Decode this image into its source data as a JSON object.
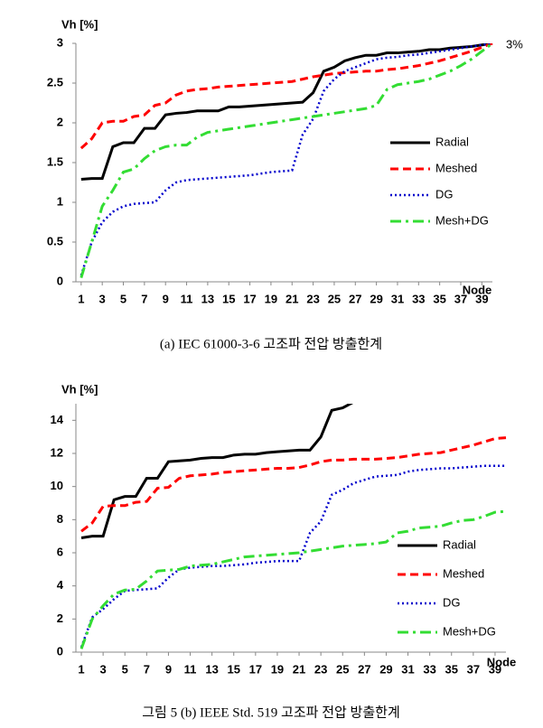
{
  "chart_data": [
    {
      "type": "line",
      "y_label": "Vh [%]",
      "x_label": "Node",
      "annotation": "3%",
      "caption": "(a) IEC 61000-3-6 고조파 전압 방출한계",
      "x": [
        1,
        2,
        3,
        4,
        5,
        6,
        7,
        8,
        9,
        10,
        11,
        12,
        13,
        14,
        15,
        16,
        17,
        18,
        19,
        20,
        21,
        22,
        23,
        24,
        25,
        26,
        27,
        28,
        29,
        30,
        31,
        32,
        33,
        34,
        35,
        36,
        37,
        38,
        39,
        40
      ],
      "xlim": [
        0.5,
        40
      ],
      "xticks": [
        1,
        3,
        5,
        7,
        9,
        11,
        13,
        15,
        17,
        19,
        21,
        23,
        25,
        27,
        29,
        31,
        33,
        35,
        37,
        39
      ],
      "ylim": [
        0,
        3
      ],
      "yticks": [
        0,
        0.5,
        1,
        1.5,
        2,
        2.5,
        3
      ],
      "grid": false,
      "legend": "right",
      "series": [
        {
          "name": "Radial",
          "color": "#000000",
          "style": "solid",
          "values": [
            1.29,
            1.3,
            1.3,
            1.7,
            1.75,
            1.75,
            1.93,
            1.93,
            2.1,
            2.12,
            2.13,
            2.15,
            2.15,
            2.15,
            2.2,
            2.2,
            2.21,
            2.22,
            2.23,
            2.24,
            2.25,
            2.26,
            2.38,
            2.65,
            2.7,
            2.78,
            2.82,
            2.85,
            2.85,
            2.88,
            2.88,
            2.89,
            2.9,
            2.92,
            2.92,
            2.94,
            2.95,
            2.96,
            2.98,
            3.0
          ]
        },
        {
          "name": "Meshed",
          "color": "#ff0000",
          "style": "dashed",
          "values": [
            1.68,
            1.8,
            2.0,
            2.02,
            2.02,
            2.08,
            2.1,
            2.22,
            2.25,
            2.35,
            2.4,
            2.42,
            2.43,
            2.45,
            2.46,
            2.47,
            2.48,
            2.49,
            2.5,
            2.51,
            2.52,
            2.55,
            2.58,
            2.6,
            2.62,
            2.63,
            2.64,
            2.65,
            2.65,
            2.67,
            2.68,
            2.7,
            2.72,
            2.75,
            2.78,
            2.82,
            2.86,
            2.9,
            2.95,
            3.0
          ]
        },
        {
          "name": "DG",
          "color": "#0000cc",
          "style": "dotted",
          "values": [
            0.08,
            0.5,
            0.75,
            0.88,
            0.95,
            0.98,
            0.99,
            1.0,
            1.15,
            1.25,
            1.28,
            1.29,
            1.3,
            1.31,
            1.32,
            1.33,
            1.34,
            1.36,
            1.38,
            1.39,
            1.4,
            1.85,
            2.05,
            2.4,
            2.55,
            2.65,
            2.7,
            2.75,
            2.8,
            2.82,
            2.83,
            2.85,
            2.86,
            2.88,
            2.9,
            2.92,
            2.94,
            2.96,
            2.98,
            3.0
          ]
        },
        {
          "name": "Mesh+DG",
          "color": "#33dd33",
          "style": "dashdot",
          "values": [
            0.05,
            0.5,
            0.95,
            1.15,
            1.38,
            1.42,
            1.55,
            1.65,
            1.7,
            1.72,
            1.72,
            1.82,
            1.88,
            1.9,
            1.92,
            1.94,
            1.96,
            1.98,
            2.0,
            2.02,
            2.04,
            2.06,
            2.08,
            2.1,
            2.12,
            2.14,
            2.16,
            2.18,
            2.22,
            2.42,
            2.48,
            2.5,
            2.52,
            2.55,
            2.6,
            2.65,
            2.72,
            2.8,
            2.9,
            3.0
          ]
        }
      ]
    },
    {
      "type": "line",
      "y_label": "Vh [%]",
      "x_label": "Node",
      "caption": "그림 5 (b) IEEE Std. 519 고조파 전압 방출한계",
      "x": [
        1,
        2,
        3,
        4,
        5,
        6,
        7,
        8,
        9,
        10,
        11,
        12,
        13,
        14,
        15,
        16,
        17,
        18,
        19,
        20,
        21,
        22,
        23,
        24,
        25,
        26,
        27,
        28,
        29,
        30,
        31,
        32,
        33,
        34,
        35,
        36,
        37,
        38,
        39,
        40
      ],
      "xlim": [
        0.5,
        40
      ],
      "xticks": [
        1,
        3,
        5,
        7,
        9,
        11,
        13,
        15,
        17,
        19,
        21,
        23,
        25,
        27,
        29,
        31,
        33,
        35,
        37,
        39
      ],
      "ylim": [
        0,
        15
      ],
      "yticks": [
        0,
        2,
        4,
        6,
        8,
        10,
        12,
        14
      ],
      "grid": false,
      "legend": "right",
      "series": [
        {
          "name": "Radial",
          "color": "#000000",
          "style": "solid",
          "values": [
            6.9,
            7.0,
            7.0,
            9.2,
            9.4,
            9.4,
            10.5,
            10.5,
            11.5,
            11.55,
            11.6,
            11.7,
            11.75,
            11.75,
            11.9,
            11.95,
            11.95,
            12.05,
            12.1,
            12.15,
            12.2,
            12.2,
            13.0,
            14.6,
            14.75,
            15.1,
            null,
            null,
            null,
            null,
            null,
            null,
            null,
            null,
            null,
            null,
            null,
            null,
            null,
            null
          ]
        },
        {
          "name": "Meshed",
          "color": "#ff0000",
          "style": "dashed",
          "values": [
            7.3,
            7.8,
            8.8,
            8.85,
            8.85,
            9.05,
            9.1,
            9.9,
            9.95,
            10.5,
            10.65,
            10.7,
            10.75,
            10.85,
            10.9,
            10.95,
            11.0,
            11.05,
            11.1,
            11.1,
            11.15,
            11.3,
            11.5,
            11.6,
            11.6,
            11.65,
            11.65,
            11.65,
            11.7,
            11.75,
            11.85,
            11.95,
            12.0,
            12.05,
            12.2,
            12.35,
            12.5,
            12.7,
            12.9,
            12.95
          ]
        },
        {
          "name": "DG",
          "color": "#0000cc",
          "style": "dotted",
          "values": [
            0.3,
            2.1,
            2.6,
            3.2,
            3.7,
            3.75,
            3.8,
            3.85,
            4.5,
            5.0,
            5.1,
            5.15,
            5.2,
            5.2,
            5.25,
            5.3,
            5.4,
            5.45,
            5.5,
            5.5,
            5.5,
            7.2,
            7.9,
            9.5,
            9.8,
            10.2,
            10.4,
            10.6,
            10.65,
            10.7,
            10.9,
            11.0,
            11.05,
            11.1,
            11.1,
            11.15,
            11.2,
            11.25,
            11.25,
            11.25
          ]
        },
        {
          "name": "Mesh+DG",
          "color": "#33dd33",
          "style": "dashdot",
          "values": [
            0.2,
            2.0,
            2.8,
            3.5,
            3.75,
            3.8,
            4.3,
            4.9,
            4.95,
            5.0,
            5.2,
            5.25,
            5.3,
            5.45,
            5.6,
            5.75,
            5.8,
            5.85,
            5.9,
            5.95,
            6.0,
            6.1,
            6.2,
            6.3,
            6.4,
            6.45,
            6.5,
            6.55,
            6.65,
            7.2,
            7.3,
            7.5,
            7.55,
            7.6,
            7.8,
            7.95,
            8.0,
            8.2,
            8.45,
            8.5
          ]
        }
      ]
    }
  ]
}
